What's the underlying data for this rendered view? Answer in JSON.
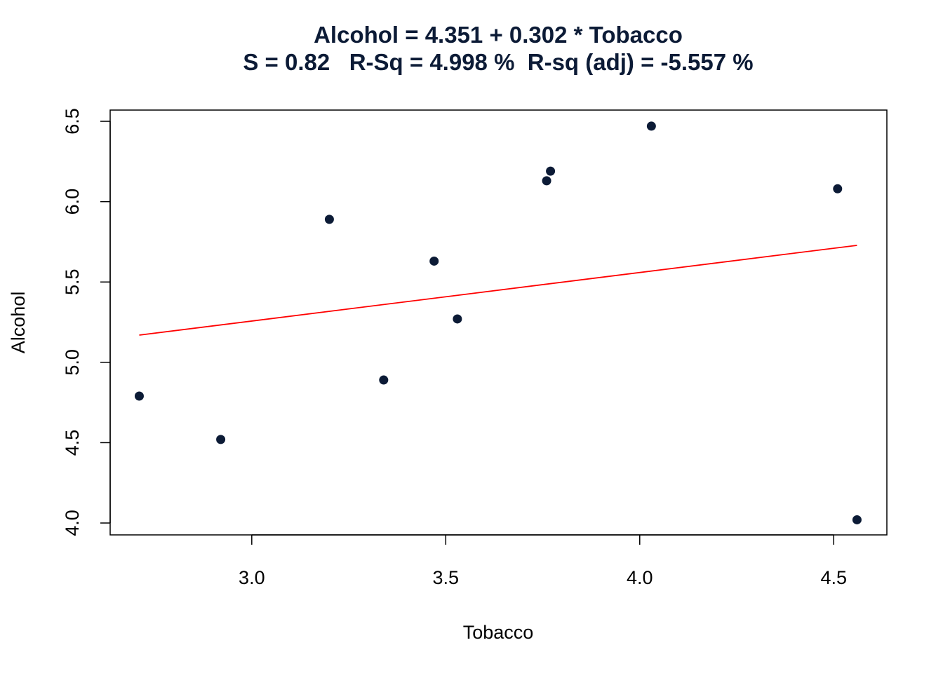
{
  "chart_data": {
    "type": "scatter",
    "title": "Alcohol = 4.351 + 0.302 * Tobacco",
    "subtitle": "S = 0.82   R-Sq = 4.998 %  R-sq (adj) = -5.557 %",
    "xlabel": "Tobacco",
    "ylabel": "Alcohol",
    "xlim": [
      2.635,
      4.637
    ],
    "ylim": [
      3.926,
      6.57
    ],
    "xticks": [
      "3.0",
      "3.5",
      "4.0",
      "4.5"
    ],
    "yticks": [
      "4.0",
      "4.5",
      "5.0",
      "5.5",
      "6.0",
      "6.5"
    ],
    "grid": false,
    "points": [
      {
        "x": 2.71,
        "y": 4.79
      },
      {
        "x": 2.92,
        "y": 4.52
      },
      {
        "x": 3.2,
        "y": 5.89
      },
      {
        "x": 3.34,
        "y": 4.89
      },
      {
        "x": 3.47,
        "y": 5.63
      },
      {
        "x": 3.53,
        "y": 5.27
      },
      {
        "x": 3.76,
        "y": 6.13
      },
      {
        "x": 3.77,
        "y": 6.19
      },
      {
        "x": 4.03,
        "y": 6.47
      },
      {
        "x": 4.51,
        "y": 6.08
      },
      {
        "x": 4.56,
        "y": 4.02
      }
    ],
    "fit_line": {
      "intercept": 4.351,
      "slope": 0.302,
      "x_range": [
        2.71,
        4.56
      ]
    },
    "colors": {
      "points": "#0c1b36",
      "title": "#0c1b36",
      "fit_line": "#ff0000",
      "axes": "#000000"
    }
  }
}
